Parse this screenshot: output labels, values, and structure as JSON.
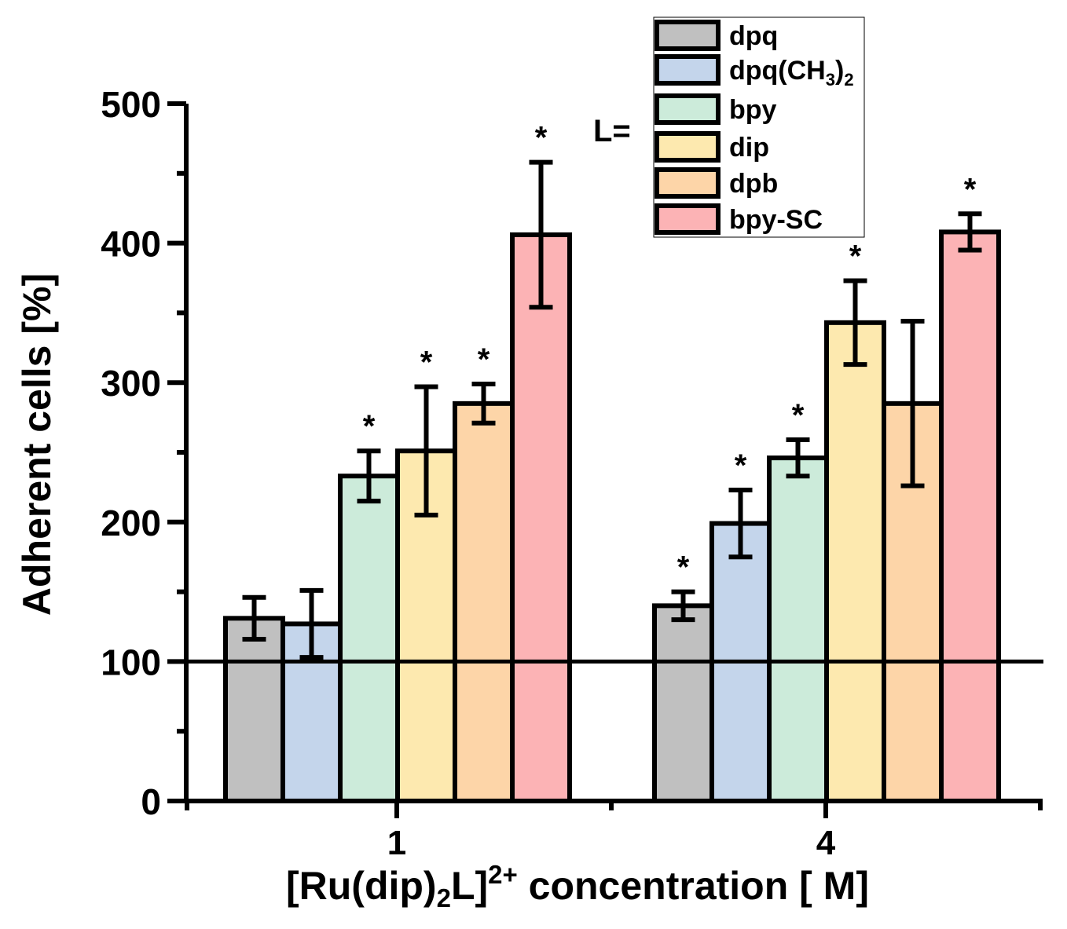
{
  "chart_data": {
    "type": "bar",
    "title": "",
    "ylabel": "Adherent cells [%]",
    "xlabel": {
      "prefix": "[Ru(dip)",
      "sub": "2",
      "mid": "L]",
      "sup": "2+",
      "suffix": " concentration [  M]"
    },
    "categories": [
      "1",
      "4"
    ],
    "ylim": [
      0,
      500
    ],
    "yticks": [
      0,
      100,
      200,
      300,
      400,
      500
    ],
    "ytick_labels": [
      "0",
      "100",
      "200",
      "300",
      "400",
      "500"
    ],
    "reference_line": 100,
    "legend_title": "L=",
    "series": [
      {
        "name": "dpq",
        "label_main": "dpq",
        "label_sub": "",
        "label_tail": "",
        "color": "#c0c0c0",
        "values": [
          131,
          140
        ],
        "errors": [
          15,
          10
        ],
        "significant": [
          false,
          true
        ]
      },
      {
        "name": "dpq(CH3)2",
        "label_main": "dpq(CH",
        "label_sub": "3",
        "label_tail": ")",
        "label_sub2": "2",
        "color": "#c4d5eb",
        "values": [
          127,
          199
        ],
        "errors": [
          24,
          24
        ],
        "significant": [
          false,
          true
        ]
      },
      {
        "name": "bpy",
        "label_main": "bpy",
        "label_sub": "",
        "label_tail": "",
        "color": "#ccebda",
        "values": [
          233,
          246
        ],
        "errors": [
          18,
          13
        ],
        "significant": [
          true,
          true
        ]
      },
      {
        "name": "dip",
        "label_main": "dip",
        "label_sub": "",
        "label_tail": "",
        "color": "#fde9af",
        "values": [
          251,
          343
        ],
        "errors": [
          46,
          30
        ],
        "significant": [
          true,
          true
        ]
      },
      {
        "name": "dpb",
        "label_main": "dpb",
        "label_sub": "",
        "label_tail": "",
        "color": "#fdd5a8",
        "values": [
          285,
          285
        ],
        "errors": [
          14,
          59
        ],
        "significant": [
          true,
          false
        ]
      },
      {
        "name": "bpy-SC",
        "label_main": "bpy-SC",
        "label_sub": "",
        "label_tail": "",
        "color": "#fcb3b5",
        "values": [
          406,
          408
        ],
        "errors": [
          52,
          13
        ],
        "significant": [
          true,
          true
        ]
      }
    ],
    "significance_marker": "*",
    "legend_position": "top-right"
  }
}
